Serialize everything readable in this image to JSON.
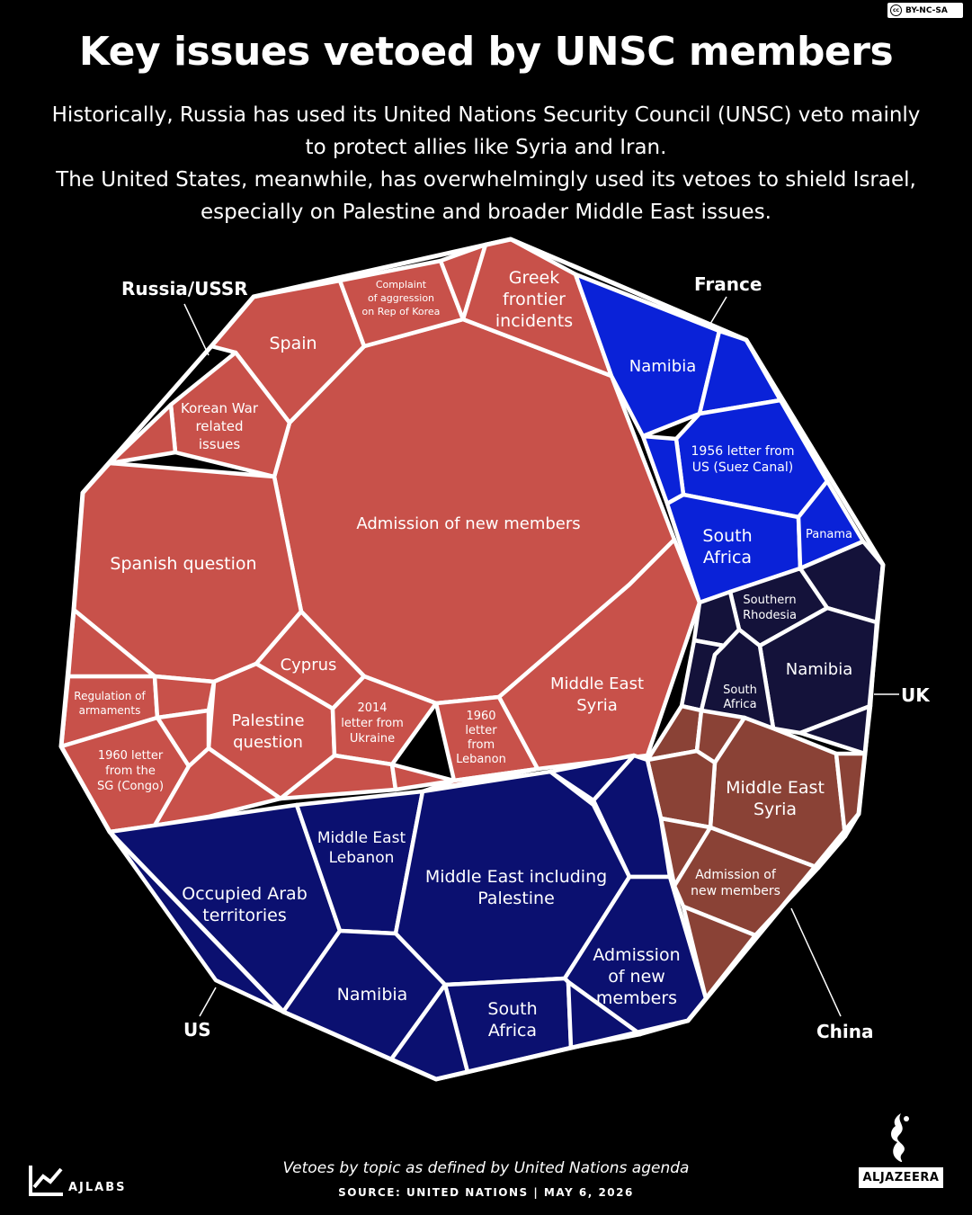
{
  "header": {
    "license": "BY-NC-SA",
    "title": "Key issues vetoed by UNSC members",
    "subtitle_lines": [
      "Historically, Russia has used its United Nations Security Council (UNSC) veto mainly",
      "to protect allies like Syria and Iran.",
      "The United States, meanwhile, has overwhelmingly used its vetoes to shield Israel,",
      "especially on Palestine and broader Middle East issues."
    ]
  },
  "colors": {
    "russia": "#C8514A",
    "france": "#0A22D8",
    "uk": "#14123A",
    "china": "#8A4236",
    "us": "#0B1070",
    "border": "#FFFFFF"
  },
  "countries": {
    "russia": "Russia/USSR",
    "france": "France",
    "uk": "UK",
    "china": "China",
    "us": "US"
  },
  "cells": {
    "russia_admission": "Admission of new members",
    "russia_spanish": "Spanish question",
    "russia_spain": "Spain",
    "russia_korean": [
      "Korean War",
      "related",
      "issues"
    ],
    "russia_complaint": [
      "Complaint",
      "of aggression",
      "on Rep of Korea"
    ],
    "russia_greek": [
      "Greek",
      "frontier",
      "incidents"
    ],
    "russia_cyprus": "Cyprus",
    "russia_palestine": [
      "Palestine",
      "question"
    ],
    "russia_regulation": [
      "Regulation of",
      "armaments"
    ],
    "russia_congo": [
      "1960 letter",
      "from the",
      "SG (Congo)"
    ],
    "russia_ukraine": [
      "2014",
      "letter from",
      "Ukraine"
    ],
    "russia_lebanon": [
      "1960",
      "letter",
      "from",
      "Lebanon"
    ],
    "russia_syria": [
      "Middle East",
      "Syria"
    ],
    "france_namibia": "Namibia",
    "france_suez": [
      "1956 letter from",
      "US (Suez Canal)"
    ],
    "france_southafrica": [
      "South",
      "Africa"
    ],
    "france_panama": "Panama",
    "uk_rhodesia": [
      "Southern",
      "Rhodesia"
    ],
    "uk_namibia": "Namibia",
    "uk_southafrica": [
      "South",
      "Africa"
    ],
    "china_syria": [
      "Middle East",
      "Syria"
    ],
    "china_admission": [
      "Admission of",
      "new members"
    ],
    "us_occupied": [
      "Occupied Arab",
      "territories"
    ],
    "us_lebanon": [
      "Middle East",
      "Lebanon"
    ],
    "us_palestine": [
      "Middle East including",
      "Palestine"
    ],
    "us_namibia": "Namibia",
    "us_southafrica": [
      "South",
      "Africa"
    ],
    "us_admission": [
      "Admission",
      "of new",
      "members"
    ]
  },
  "footer": {
    "note": "Vetoes by topic as defined by United Nations agenda",
    "source": "SOURCE:  UNITED NATIONS   |   MAY 6, 2026",
    "ajlabs": "AJLABS",
    "aljazeera": "ALJAZEERA"
  }
}
